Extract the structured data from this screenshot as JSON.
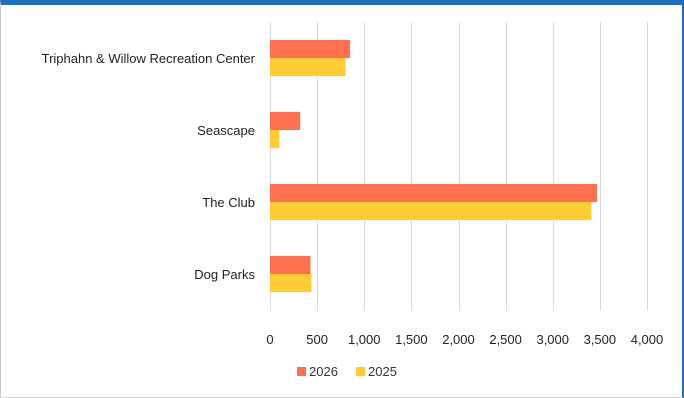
{
  "chart_data": {
    "type": "bar",
    "orientation": "horizontal",
    "categories": [
      "Triphahn & Willow Recreation Center",
      "Seascape",
      "The Club",
      "Dog Parks"
    ],
    "series": [
      {
        "name": "2026",
        "color": "#ff7050",
        "values": [
          850,
          320,
          3470,
          430
        ]
      },
      {
        "name": "2025",
        "color": "#ffcc33",
        "values": [
          800,
          100,
          3410,
          440
        ]
      }
    ],
    "xlim": [
      0,
      4000
    ],
    "xticks": [
      0,
      500,
      1000,
      1500,
      2000,
      2500,
      3000,
      3500,
      4000
    ],
    "xtick_labels": [
      "0",
      "500",
      "1,000",
      "1,500",
      "2,000",
      "2,500",
      "3,000",
      "3,500",
      "4,000"
    ],
    "grid": true,
    "legend": "bottom"
  }
}
